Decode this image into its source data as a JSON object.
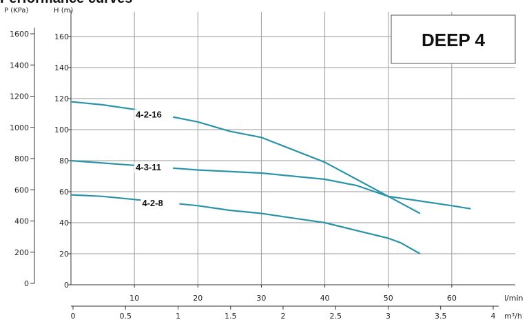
{
  "header_text": "Performance curves",
  "chart_data": {
    "type": "line",
    "title": "DEEP 4",
    "x_primary": {
      "label": "l/min",
      "ticks": [
        10,
        20,
        30,
        40,
        50,
        60
      ],
      "range": [
        0,
        70
      ]
    },
    "x_secondary": {
      "label": "m³/h",
      "ticks": [
        "0",
        "0.5",
        "1",
        "1.5",
        "2",
        "2.5",
        "3",
        "3.5",
        "4"
      ]
    },
    "y_primary": {
      "label": "H (m)",
      "ticks": [
        0,
        20,
        40,
        60,
        80,
        100,
        120,
        140,
        160
      ],
      "range": [
        0,
        176
      ]
    },
    "y_secondary": {
      "label": "P (KPa)",
      "ticks": [
        0,
        200,
        400,
        600,
        800,
        1000,
        1200,
        1400,
        1600
      ]
    },
    "grid": true,
    "series": [
      {
        "name": "4-2-16",
        "color": "#2a93a8",
        "x": [
          0,
          5,
          10,
          15,
          20,
          25,
          30,
          35,
          40,
          45,
          50,
          55
        ],
        "y": [
          118,
          116,
          113,
          109,
          105,
          99,
          95,
          87,
          79,
          68,
          57,
          46
        ]
      },
      {
        "name": "4-3-11",
        "color": "#2a93a8",
        "x": [
          0,
          10,
          20,
          30,
          40,
          45,
          50,
          55,
          60,
          63
        ],
        "y": [
          80,
          77,
          74,
          72,
          68,
          64,
          57,
          54,
          51,
          49
        ]
      },
      {
        "name": "4-2-8",
        "color": "#2a93a8",
        "x": [
          0,
          5,
          10,
          15,
          20,
          25,
          30,
          35,
          40,
          45,
          50,
          52,
          55
        ],
        "y": [
          58,
          57,
          55,
          53,
          51,
          48,
          46,
          43,
          40,
          35,
          30,
          27,
          20
        ]
      }
    ]
  }
}
